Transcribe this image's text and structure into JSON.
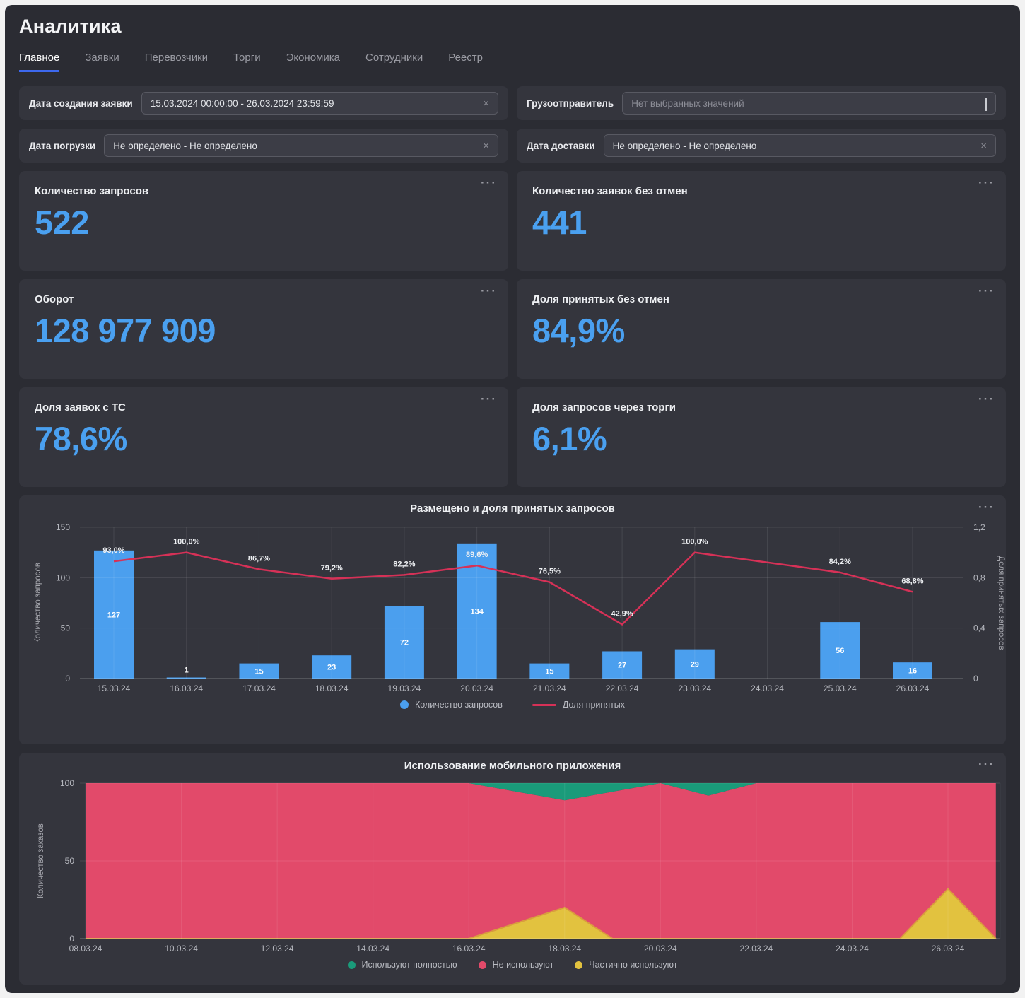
{
  "app": {
    "title": "Аналитика"
  },
  "tabs": [
    {
      "label": "Главное",
      "active": true
    },
    {
      "label": "Заявки"
    },
    {
      "label": "Перевозчики"
    },
    {
      "label": "Торги"
    },
    {
      "label": "Экономика"
    },
    {
      "label": "Сотрудники"
    },
    {
      "label": "Реестр"
    }
  ],
  "filters": [
    {
      "label": "Дата создания заявки",
      "value": "15.03.2024 00:00:00 - 26.03.2024 23:59:59"
    },
    {
      "label": "Грузоотправитель",
      "placeholder": "Нет выбранных значений"
    },
    {
      "label": "Дата погрузки",
      "value": "Не определено - Не определено"
    },
    {
      "label": "Дата доставки",
      "value": "Не определено - Не определено"
    }
  ],
  "kpis": [
    {
      "title": "Количество запросов",
      "value": "522"
    },
    {
      "title": "Количество заявок без отмен",
      "value": "441"
    },
    {
      "title": "Оборот",
      "value": "128 977 909"
    },
    {
      "title": "Доля принятых без отмен",
      "value": "84,9%"
    },
    {
      "title": "Доля заявок с ТС",
      "value": "78,6%"
    },
    {
      "title": "Доля запросов через торги",
      "value": "6,1%"
    }
  ],
  "icons": {
    "menu": "···",
    "clear": "×"
  },
  "colors": {
    "accent_blue": "#4aa0f0",
    "bar_blue": "#4b9fee",
    "line_red": "#d63157",
    "area_red": "#e24a6a",
    "area_green": "#1a9b7a",
    "area_yellow": "#e2c23f",
    "yellow_edge": "#d99c3e",
    "panel_bg": "#34353d",
    "page_bg": "#2b2c33",
    "tab_underline": "#3d68ee"
  },
  "chart_data": [
    {
      "type": "bar+line",
      "title": "Размещено и доля принятых запросов",
      "categories": [
        "15.03.24",
        "16.03.24",
        "17.03.24",
        "18.03.24",
        "19.03.24",
        "20.03.24",
        "21.03.24",
        "22.03.24",
        "23.03.24",
        "24.03.24",
        "25.03.24",
        "26.03.24"
      ],
      "bar_series": {
        "name": "Количество запросов",
        "color": "#4b9fee",
        "values": [
          127,
          1,
          15,
          23,
          72,
          134,
          15,
          27,
          29,
          null,
          56,
          16
        ]
      },
      "line_series": {
        "name": "Доля принятых",
        "color": "#d63157",
        "values_percent": [
          93.0,
          100.0,
          86.7,
          79.2,
          82.2,
          89.6,
          76.5,
          42.9,
          100.0,
          null,
          84.2,
          68.8
        ],
        "labels": [
          "93,0%",
          "100,0%",
          "86,7%",
          "79,2%",
          "82,2%",
          "89,6%",
          "76,5%",
          "42,9%",
          "100,0%",
          null,
          "84,2%",
          "68,8%"
        ]
      },
      "left_axis": {
        "label": "Количество запросов",
        "lim": [
          0,
          150
        ],
        "ticks": [
          [
            150,
            "150"
          ],
          [
            100,
            "100"
          ],
          [
            50,
            "50"
          ],
          [
            0,
            "0"
          ]
        ]
      },
      "right_axis": {
        "label": "Доля принятых запросов",
        "lim": [
          0,
          1.2
        ],
        "ticks": [
          [
            1.2,
            "1,2"
          ],
          [
            0.8,
            "0,8"
          ],
          [
            0.4,
            "0,4"
          ],
          [
            0,
            "0"
          ]
        ]
      },
      "grid": true,
      "legend_position": "bottom"
    },
    {
      "type": "area",
      "title": "Использование мобильного приложения",
      "x_days": [
        8,
        9,
        10,
        11,
        12,
        13,
        14,
        15,
        16,
        17,
        18,
        19,
        20,
        21,
        22,
        23,
        24,
        25,
        26,
        27
      ],
      "xticks": [
        [
          8,
          "08.03.24"
        ],
        [
          10,
          "10.03.24"
        ],
        [
          12,
          "12.03.24"
        ],
        [
          14,
          "14.03.24"
        ],
        [
          16,
          "16.03.24"
        ],
        [
          18,
          "18.03.24"
        ],
        [
          20,
          "20.03.24"
        ],
        [
          22,
          "22.03.24"
        ],
        [
          24,
          "24.03.24"
        ],
        [
          26,
          "26.03.24"
        ]
      ],
      "stack_bottom_to_top": [
        "Частично используют",
        "Не используют",
        "Используют полностью"
      ],
      "series": [
        {
          "name": "Частично используют",
          "color": "#e2c23f",
          "values": [
            0,
            0,
            0,
            0,
            0,
            0,
            0,
            0,
            0,
            10,
            20,
            0,
            0,
            0,
            0,
            0,
            0,
            0,
            32,
            0
          ]
        },
        {
          "name": "Не используют",
          "color": "#e24a6a",
          "values": [
            100,
            100,
            100,
            100,
            100,
            100,
            100,
            100,
            100,
            84.5,
            69,
            94.5,
            100,
            92,
            100,
            100,
            100,
            100,
            68,
            100
          ]
        },
        {
          "name": "Используют полностью",
          "color": "#1a9b7a",
          "values": [
            0,
            0,
            0,
            0,
            0,
            0,
            0,
            0,
            0,
            5.5,
            11,
            5.5,
            0,
            8,
            0,
            0,
            0,
            0,
            0,
            0
          ]
        }
      ],
      "legend_order": [
        "Используют полностью",
        "Не используют",
        "Частично используют"
      ],
      "yaxis": {
        "label": "Количество заказов",
        "lim": [
          0,
          100
        ],
        "ticks": [
          [
            100,
            "100"
          ],
          [
            50,
            "50"
          ],
          [
            0,
            "0"
          ]
        ]
      },
      "grid": true,
      "legend_position": "bottom"
    }
  ]
}
